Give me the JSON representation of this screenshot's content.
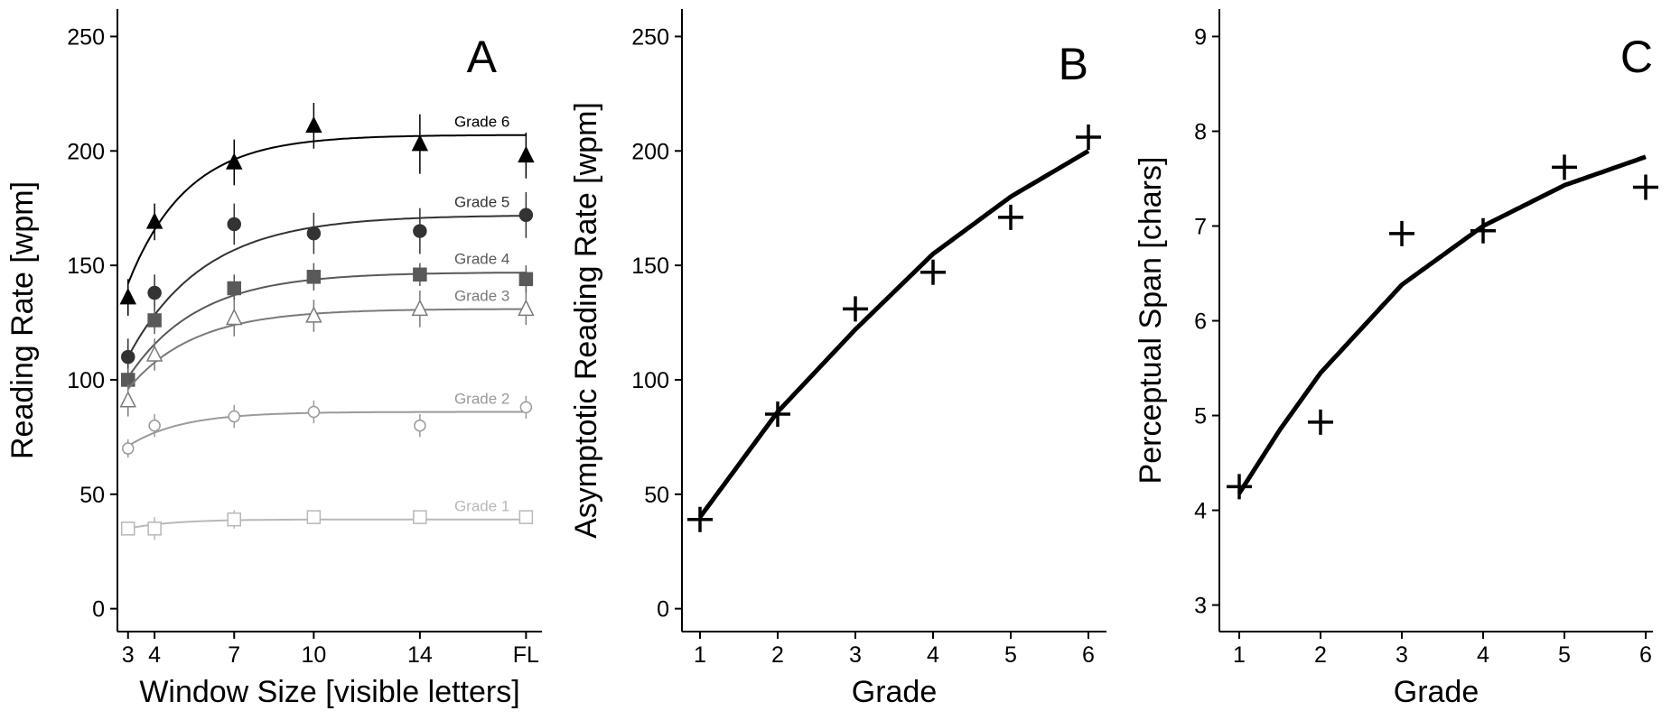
{
  "chart_data": [
    {
      "type": "line",
      "panel_label": "A",
      "xlabel": "Window Size [visible letters]",
      "ylabel": "Reading Rate [wpm]",
      "ylim": [
        0,
        250
      ],
      "yticks": [
        0,
        50,
        100,
        150,
        200,
        250
      ],
      "x_ticks": [
        "3",
        "4",
        "7",
        "10",
        "14",
        "FL"
      ],
      "x_positions": [
        3,
        4,
        7,
        10,
        14,
        18
      ],
      "grid": false,
      "legend": "none (series labeled inline at right end of curves)",
      "series": [
        {
          "name": "Grade 6",
          "color": "#000000",
          "marker": "triangle-filled",
          "values": [
            136,
            169,
            195,
            211,
            203,
            198
          ],
          "errors": [
            8,
            8,
            10,
            10,
            13,
            10
          ],
          "curve": {
            "asymptote": 207,
            "start": 142,
            "rate": 0.45
          }
        },
        {
          "name": "Grade 5",
          "color": "#333333",
          "marker": "circle-filled",
          "values": [
            110,
            138,
            168,
            164,
            165,
            172
          ],
          "errors": [
            8,
            8,
            9,
            9,
            10,
            10
          ],
          "curve": {
            "asymptote": 172,
            "start": 110,
            "rate": 0.35
          }
        },
        {
          "name": "Grade 4",
          "color": "#595959",
          "marker": "square-filled",
          "values": [
            100,
            126,
            140,
            145,
            146,
            144
          ],
          "errors": [
            5,
            6,
            6,
            6,
            5,
            6
          ],
          "curve": {
            "asymptote": 147,
            "start": 101,
            "rate": 0.38
          }
        },
        {
          "name": "Grade 3",
          "color": "#7a7a7a",
          "marker": "triangle-open",
          "values": [
            91,
            111,
            127,
            128,
            131,
            131
          ],
          "errors": [
            7,
            7,
            8,
            7,
            8,
            7
          ],
          "curve": {
            "asymptote": 131,
            "start": 96,
            "rate": 0.4
          }
        },
        {
          "name": "Grade 2",
          "color": "#9a9a9a",
          "marker": "circle-open",
          "values": [
            70,
            80,
            84,
            86,
            80,
            88
          ],
          "errors": [
            4,
            5,
            5,
            5,
            5,
            5
          ],
          "curve": {
            "asymptote": 86,
            "start": 71,
            "rate": 0.5
          }
        },
        {
          "name": "Grade 1",
          "color": "#b8b8b8",
          "marker": "square-open",
          "values": [
            35,
            35,
            39,
            40,
            40,
            40
          ],
          "errors": [
            3,
            5,
            4,
            3,
            3,
            3
          ],
          "curve": {
            "asymptote": 39,
            "start": 35,
            "rate": 0.6
          }
        }
      ]
    },
    {
      "type": "scatter",
      "panel_label": "B",
      "xlabel": "Grade",
      "ylabel": "Asymptotic Reading Rate [wpm]",
      "xlim": [
        0.8,
        6.2
      ],
      "ylim": [
        0,
        250
      ],
      "yticks": [
        0,
        50,
        100,
        150,
        200,
        250
      ],
      "xticks": [
        1,
        2,
        3,
        4,
        5,
        6
      ],
      "grid": false,
      "marker": "plus",
      "points": {
        "x": [
          1,
          2,
          3,
          4,
          5,
          6
        ],
        "y": [
          39,
          85,
          131,
          147,
          171,
          206
        ]
      },
      "fit": {
        "x": [
          1,
          2,
          3,
          4,
          5,
          6
        ],
        "y": [
          40,
          86,
          122,
          155,
          180,
          200
        ]
      }
    },
    {
      "type": "scatter",
      "panel_label": "C",
      "xlabel": "Grade",
      "ylabel": "Perceptual Span [chars]",
      "xlim": [
        0.8,
        6.2
      ],
      "ylim": [
        2.75,
        9.25
      ],
      "yticks": [
        3,
        4,
        5,
        6,
        7,
        8,
        9
      ],
      "xticks": [
        1,
        2,
        3,
        4,
        5,
        6
      ],
      "grid": false,
      "marker": "plus",
      "points": {
        "x": [
          1,
          2,
          3,
          4,
          5,
          6
        ],
        "y": [
          4.25,
          4.93,
          6.92,
          6.95,
          7.62,
          7.41
        ]
      },
      "fit": {
        "x": [
          1,
          1.5,
          2,
          3,
          4,
          5,
          6
        ],
        "y": [
          4.18,
          4.85,
          5.45,
          6.38,
          7.0,
          7.43,
          7.73
        ]
      }
    }
  ]
}
